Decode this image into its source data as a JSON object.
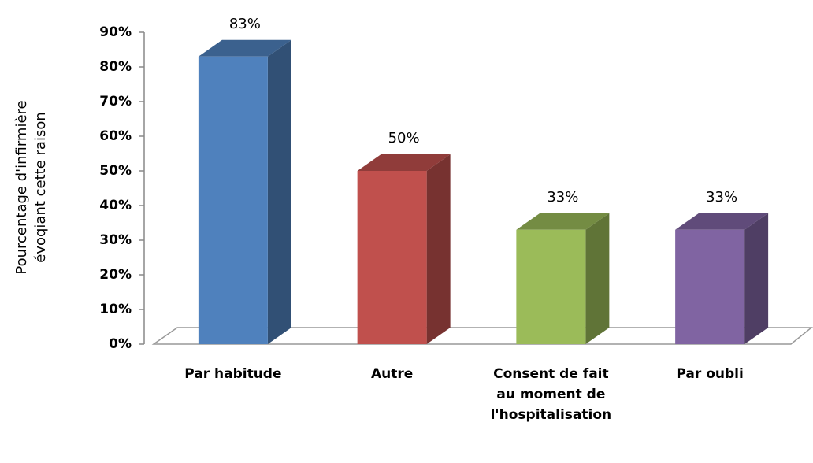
{
  "chart_data": {
    "type": "bar3d",
    "y_label": [
      "Pourcentage d'infirmière",
      "évoqiant cette raison"
    ],
    "categories": [
      "Par habitude",
      "Autre",
      "Consent de fait au moment de l'hospitalisation",
      "Par oubli"
    ],
    "values": [
      83,
      50,
      33,
      33
    ],
    "value_labels": [
      "83%",
      "50%",
      "33%",
      "33%"
    ],
    "colors": [
      "#4f81bd",
      "#c0504d",
      "#9bbb59",
      "#8064a2"
    ],
    "ylim": [
      0,
      90
    ],
    "yticks": [
      {
        "value": 0,
        "label": "0%"
      },
      {
        "value": 10,
        "label": "10%"
      },
      {
        "value": 20,
        "label": "20%"
      },
      {
        "value": 30,
        "label": "30%"
      },
      {
        "value": 40,
        "label": "40%"
      },
      {
        "value": 50,
        "label": "50%"
      },
      {
        "value": 60,
        "label": "60%"
      },
      {
        "value": 70,
        "label": "70%"
      },
      {
        "value": 80,
        "label": "80%"
      },
      {
        "value": 90,
        "label": "90%"
      }
    ],
    "grid": false
  }
}
